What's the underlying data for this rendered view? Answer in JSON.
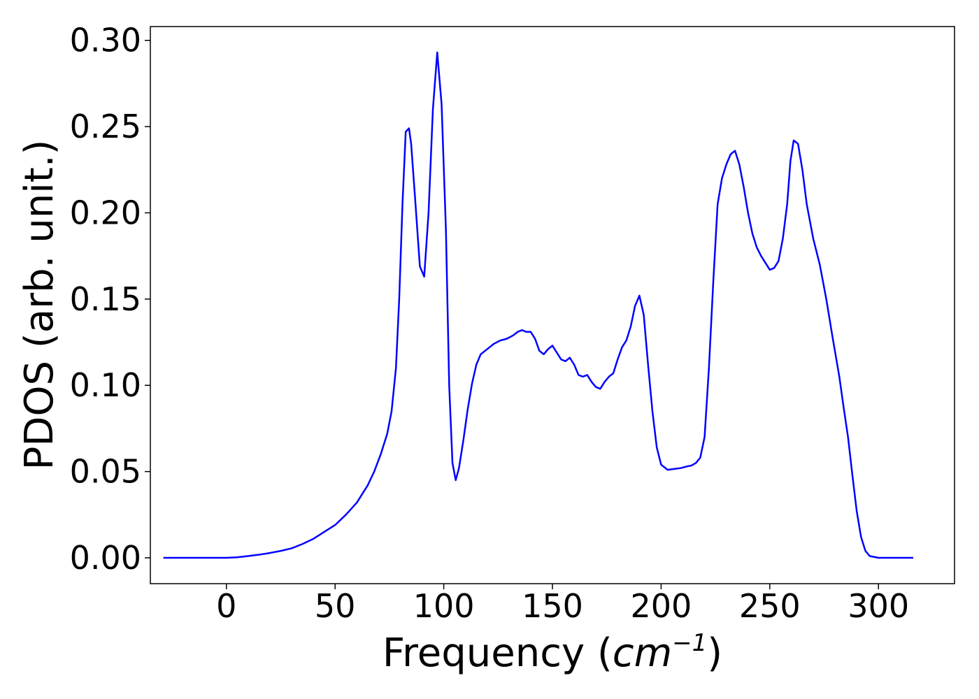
{
  "chart_data": {
    "type": "line",
    "title": "",
    "xlabel": "Frequency (",
    "xlabel_math": "cm",
    "xlabel_sup": "−1",
    "xlabel_close": ")",
    "ylabel": "PDOS (arb. unit.)",
    "xlim": [
      -35,
      335
    ],
    "ylim": [
      -0.015,
      0.308
    ],
    "grid": false,
    "legend": "none",
    "x_ticks": [
      0,
      50,
      100,
      150,
      200,
      250,
      300
    ],
    "x_tick_labels": [
      "0",
      "50",
      "100",
      "150",
      "200",
      "250",
      "300"
    ],
    "y_ticks": [
      0.0,
      0.05,
      0.1,
      0.15,
      0.2,
      0.25,
      0.3
    ],
    "y_tick_labels": [
      "0.00",
      "0.05",
      "0.10",
      "0.15",
      "0.20",
      "0.25",
      "0.30"
    ],
    "series": [
      {
        "color": "#0000ff",
        "x": [
          -29,
          0,
          5,
          10,
          15,
          20,
          25,
          30,
          35,
          40,
          45,
          50,
          55,
          60,
          65,
          68,
          71,
          74,
          76,
          78,
          79.5,
          81,
          82.5,
          84,
          85,
          87,
          89,
          91,
          93,
          95,
          97,
          99,
          101,
          102.5,
          104,
          105.5,
          107,
          109,
          111,
          113,
          115,
          117,
          120,
          123,
          126,
          129,
          132,
          134,
          136,
          138,
          140,
          142,
          144,
          146,
          148,
          150,
          152,
          154,
          156,
          158,
          160,
          162,
          164,
          166,
          168,
          170,
          172,
          174,
          176,
          178,
          180,
          182,
          184,
          186,
          188,
          190,
          192,
          194,
          196,
          198,
          200,
          203,
          206,
          209,
          212,
          214,
          216,
          218,
          220,
          222,
          224,
          226,
          228,
          230,
          232,
          234,
          236,
          238,
          240,
          242,
          244,
          246,
          248,
          250,
          252,
          254,
          256,
          258,
          259.5,
          261,
          263,
          265,
          267,
          270,
          273,
          276,
          279,
          282,
          284,
          286,
          288,
          290,
          292,
          294,
          296,
          300,
          316
        ],
        "y": [
          0.0,
          0.0,
          0.0003,
          0.001,
          0.0018,
          0.0028,
          0.004,
          0.0055,
          0.008,
          0.011,
          0.015,
          0.019,
          0.025,
          0.032,
          0.042,
          0.05,
          0.06,
          0.072,
          0.085,
          0.11,
          0.15,
          0.205,
          0.247,
          0.249,
          0.24,
          0.205,
          0.169,
          0.163,
          0.2,
          0.26,
          0.293,
          0.263,
          0.19,
          0.1,
          0.055,
          0.045,
          0.052,
          0.068,
          0.086,
          0.101,
          0.112,
          0.118,
          0.121,
          0.124,
          0.126,
          0.127,
          0.129,
          0.131,
          0.132,
          0.131,
          0.131,
          0.127,
          0.12,
          0.118,
          0.121,
          0.123,
          0.119,
          0.115,
          0.114,
          0.116,
          0.112,
          0.106,
          0.105,
          0.106,
          0.102,
          0.099,
          0.098,
          0.102,
          0.105,
          0.107,
          0.115,
          0.122,
          0.126,
          0.134,
          0.146,
          0.152,
          0.141,
          0.112,
          0.085,
          0.064,
          0.054,
          0.051,
          0.0515,
          0.052,
          0.053,
          0.0535,
          0.055,
          0.058,
          0.07,
          0.11,
          0.16,
          0.205,
          0.22,
          0.228,
          0.234,
          0.236,
          0.228,
          0.215,
          0.2,
          0.188,
          0.18,
          0.175,
          0.171,
          0.167,
          0.168,
          0.172,
          0.185,
          0.205,
          0.23,
          0.242,
          0.24,
          0.225,
          0.205,
          0.185,
          0.17,
          0.15,
          0.127,
          0.105,
          0.087,
          0.07,
          0.048,
          0.027,
          0.012,
          0.004,
          0.001,
          0.0,
          0.0
        ]
      }
    ]
  }
}
